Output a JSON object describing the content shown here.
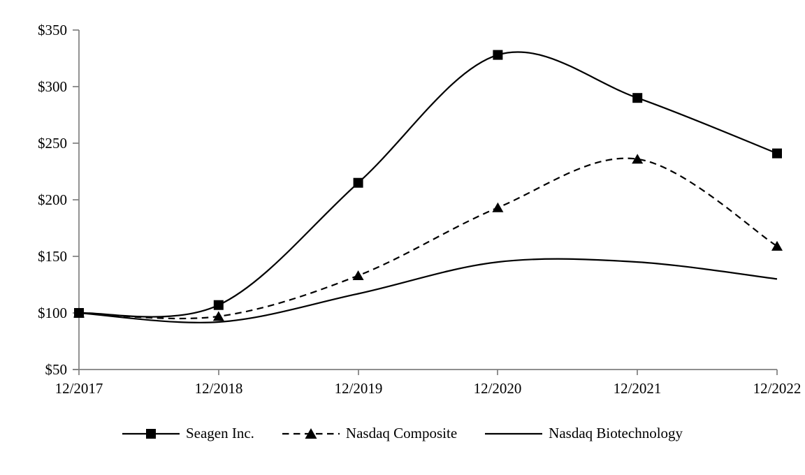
{
  "chart_data": {
    "type": "line",
    "title": "",
    "categories": [
      "12/2017",
      "12/2018",
      "12/2019",
      "12/2020",
      "12/2021",
      "12/2022"
    ],
    "series": [
      {
        "name": "Seagen Inc.",
        "line_style": "solid",
        "marker": "square",
        "values": [
          100,
          107,
          215,
          328,
          290,
          241
        ]
      },
      {
        "name": "Nasdaq Composite",
        "line_style": "dashed",
        "marker": "triangle",
        "values": [
          100,
          97,
          133,
          193,
          236,
          159
        ]
      },
      {
        "name": "Nasdaq Biotechnology",
        "line_style": "solid",
        "marker": "none",
        "values": [
          100,
          92,
          117,
          145,
          145,
          130
        ]
      }
    ],
    "y_tick_labels": [
      "$350",
      "$300",
      "$250",
      "$200",
      "$150",
      "$100",
      "$50"
    ],
    "y_ticks": [
      350,
      300,
      250,
      200,
      150,
      100,
      50
    ],
    "ylim": [
      50,
      350
    ],
    "xlabel": "",
    "ylabel": "",
    "grid": "off",
    "legend_position": "bottom-center",
    "line_smoothing": "on",
    "colors": {
      "series_line": "#000000",
      "marker_fill": "#000000",
      "axis": "#7f7f7f",
      "text": "#000000",
      "background": "#ffffff"
    }
  }
}
